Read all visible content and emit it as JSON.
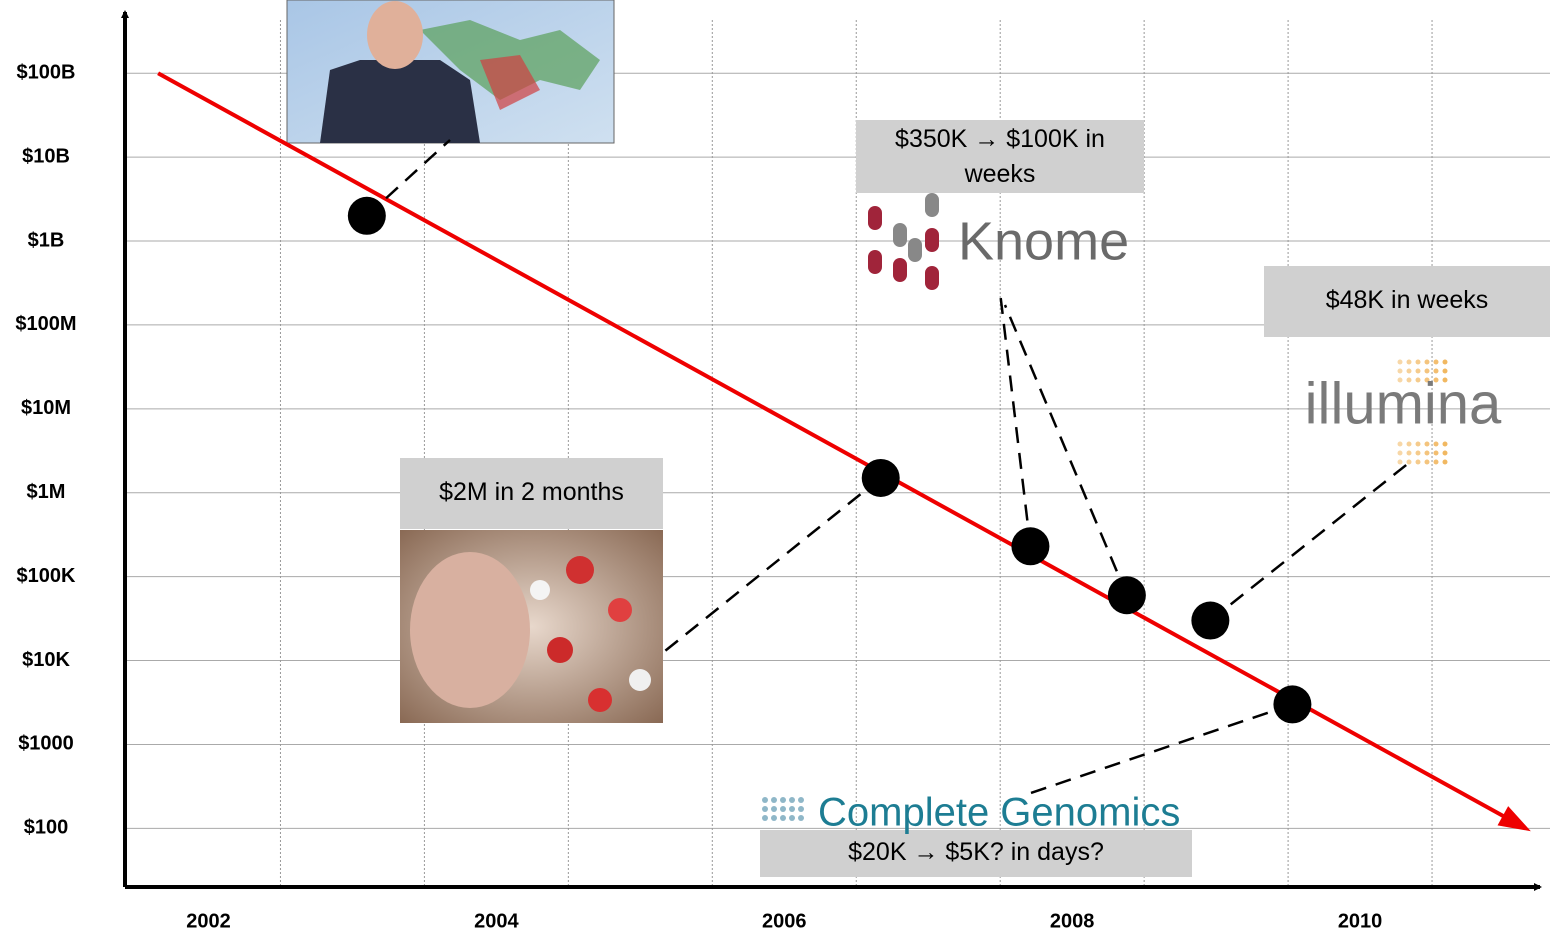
{
  "chart_data": {
    "type": "line",
    "y_scale": "log",
    "xlim": [
      2001.42,
      2011.25
    ],
    "ylim": [
      20,
      650000000000
    ],
    "xticks": [
      2002,
      2004,
      2006,
      2008,
      2010
    ],
    "yticks": [
      {
        "value": 100000000000,
        "label": "$100B"
      },
      {
        "value": 10000000000,
        "label": "$10B"
      },
      {
        "value": 1000000000,
        "label": "$1B"
      },
      {
        "value": 100000000,
        "label": "$100M"
      },
      {
        "value": 10000000,
        "label": "$10M"
      },
      {
        "value": 1000000,
        "label": "$1M"
      },
      {
        "value": 100000,
        "label": "$100K"
      },
      {
        "value": 10000,
        "label": "$10K"
      },
      {
        "value": 1000,
        "label": "$1000"
      },
      {
        "value": 100,
        "label": "$100"
      }
    ],
    "grid": true,
    "trend": {
      "x": [
        2001.65,
        2011.15
      ],
      "values": [
        100000000000,
        100
      ],
      "color": "#ee0000"
    },
    "points": {
      "x": [
        2003.1,
        2006.67,
        2007.71,
        2008.38,
        2008.96,
        2009.53
      ],
      "values": [
        2000000000,
        1500000,
        230000,
        60000,
        30000,
        3000
      ],
      "color": "#000000"
    },
    "annotations": [
      "$2M in 2 months",
      "$350K → $100K in weeks",
      "$48K in weeks",
      "$20K → $5K? in days?"
    ],
    "logos": [
      "Knome",
      "illumina",
      "Complete Genomics"
    ]
  }
}
